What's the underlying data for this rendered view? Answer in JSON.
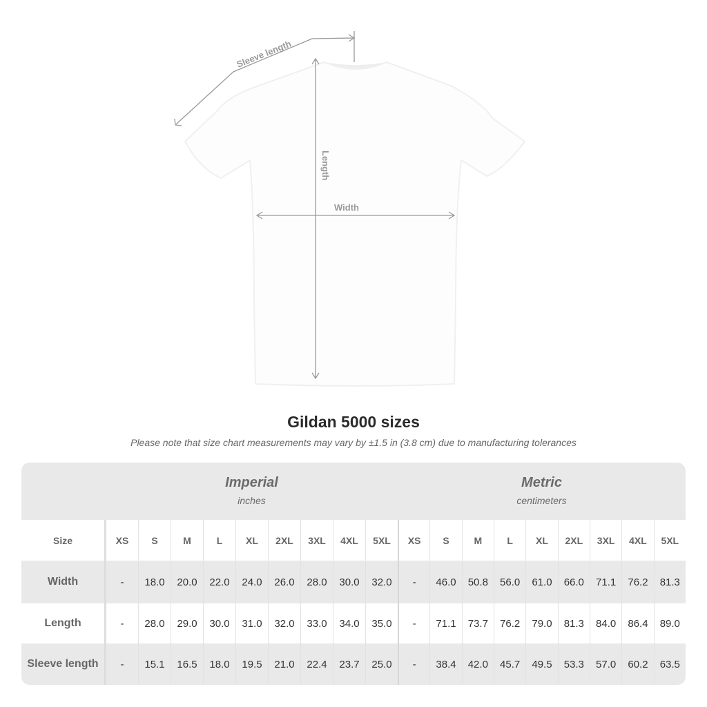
{
  "diagram": {
    "sleeve_label": "Sleeve length",
    "length_label": "Length",
    "width_label": "Width"
  },
  "title": "Gildan 5000 sizes",
  "note": "Please note that size chart measurements may vary by ±1.5 in (3.8 cm) due to manufacturing tolerances",
  "imperial": {
    "title": "Imperial",
    "unit": "inches"
  },
  "metric": {
    "title": "Metric",
    "unit": "centimeters"
  },
  "size_label": "Size",
  "sizes": [
    "XS",
    "S",
    "M",
    "L",
    "XL",
    "2XL",
    "3XL",
    "4XL",
    "5XL"
  ],
  "rows": [
    {
      "label": "Width",
      "imperial": [
        "-",
        "18.0",
        "20.0",
        "22.0",
        "24.0",
        "26.0",
        "28.0",
        "30.0",
        "32.0"
      ],
      "metric": [
        "-",
        "46.0",
        "50.8",
        "56.0",
        "61.0",
        "66.0",
        "71.1",
        "76.2",
        "81.3"
      ]
    },
    {
      "label": "Length",
      "imperial": [
        "-",
        "28.0",
        "29.0",
        "30.0",
        "31.0",
        "32.0",
        "33.0",
        "34.0",
        "35.0"
      ],
      "metric": [
        "-",
        "71.1",
        "73.7",
        "76.2",
        "79.0",
        "81.3",
        "84.0",
        "86.4",
        "89.0"
      ]
    },
    {
      "label": "Sleeve length",
      "imperial": [
        "-",
        "15.1",
        "16.5",
        "18.0",
        "19.5",
        "21.0",
        "22.4",
        "23.7",
        "25.0"
      ],
      "metric": [
        "-",
        "38.4",
        "42.0",
        "45.7",
        "49.5",
        "53.3",
        "57.0",
        "60.2",
        "63.5"
      ]
    }
  ]
}
